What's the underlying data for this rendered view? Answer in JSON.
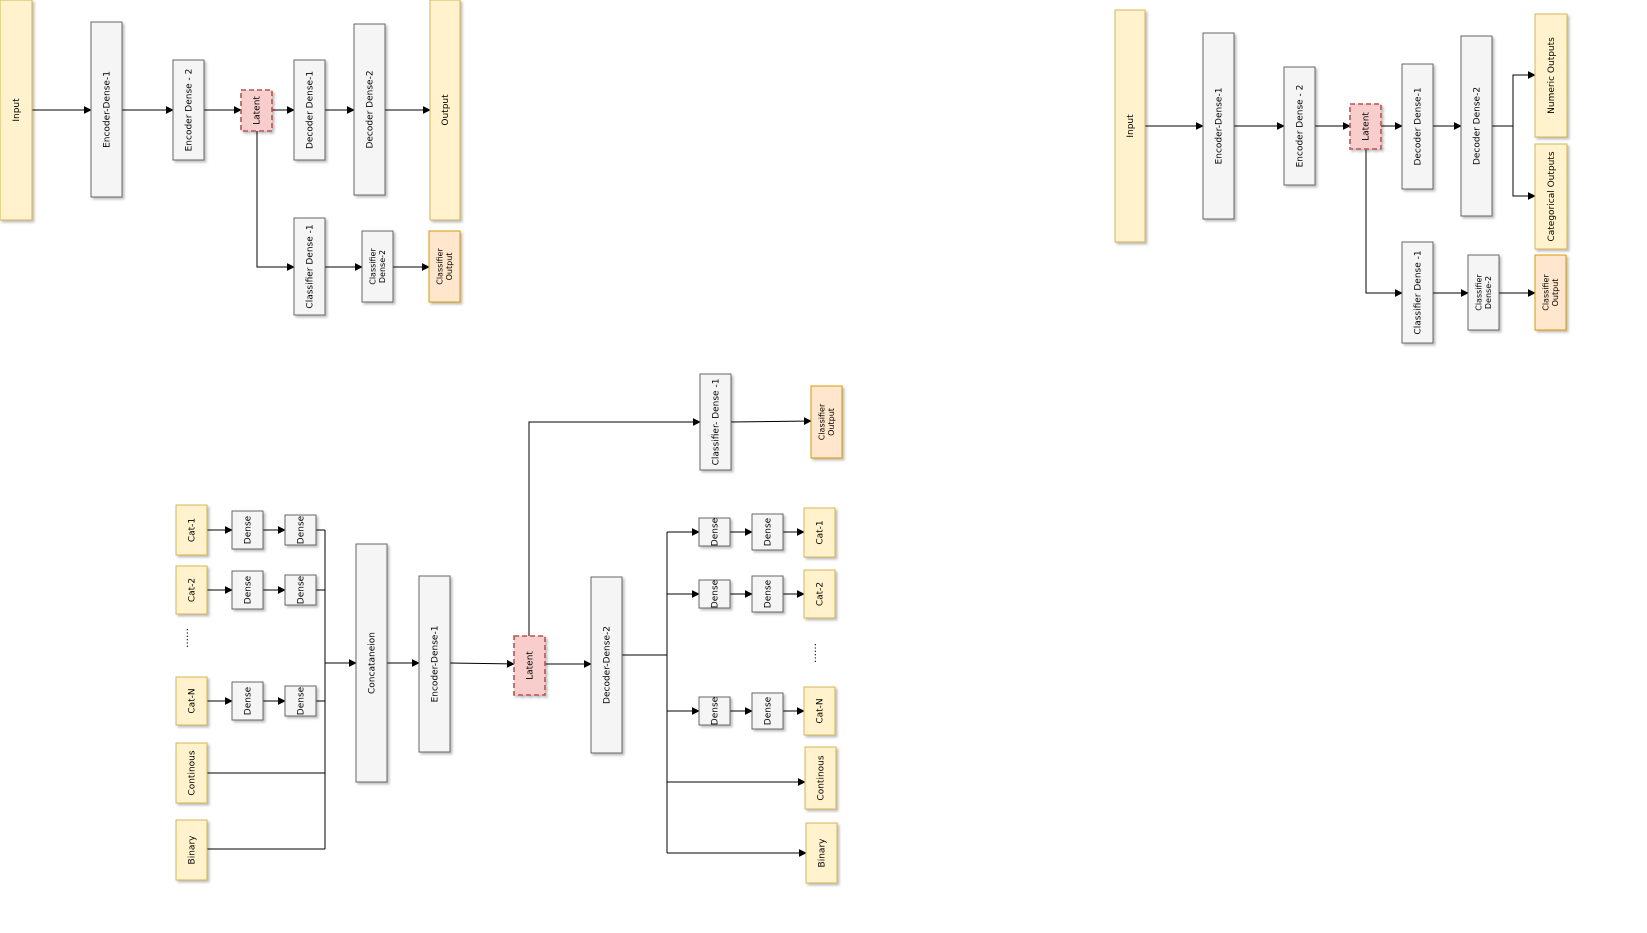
{
  "diagram_top_left": {
    "input": "Input",
    "encoder_dense_1": "Encoder-Dense-1",
    "encoder_dense_2": "Encoder Dense - 2",
    "latent": "Latent",
    "decoder_dense_1": "Decoder Dense-1",
    "decoder_dense_2": "Decoder Dense-2",
    "output": "Output",
    "classifier_dense_1": "Classifier Dense -1",
    "classifier_dense_2": [
      "Classifier",
      "Dense-2"
    ],
    "classifier_output": [
      "Classifier",
      "Output"
    ]
  },
  "diagram_top_right": {
    "input": "Input",
    "encoder_dense_1": "Encoder-Dense-1",
    "encoder_dense_2": "Encoder Dense - 2",
    "latent": "Latent",
    "decoder_dense_1": "Decoder Dense-1",
    "decoder_dense_2": "Decoder Dense-2",
    "numeric_outputs": "Numeric  Outputs",
    "categorical_outputs": "Categorical Outputs",
    "classifier_dense_1": "Classifier Dense -1",
    "classifier_dense_2": [
      "Classifier",
      "Dense-2"
    ],
    "classifier_output": [
      "Classifier",
      "Output"
    ]
  },
  "diagram_bottom": {
    "inputs": [
      "Cat-1",
      "Cat-2",
      "Cat-N",
      "Continous",
      "Binary"
    ],
    "ellipsis": "……",
    "dense": "Dense",
    "concatenation": "Concataneion",
    "encoder_dense_1": "Encoder-Dense-1",
    "latent": "Latent",
    "decoder_dense_2": "Decoder-Dense-2",
    "classifier_dense_1": "Classifier- Dense -1",
    "classifier_output": [
      "Classifier",
      "Output"
    ],
    "outputs": [
      "Cat-1",
      "Cat-2",
      "Cat-N",
      "Continous",
      "Binary"
    ]
  },
  "colors": {
    "input_fill": "#fff2cc",
    "input_stroke": "#d6b656",
    "layer_fill": "#f5f5f5",
    "layer_stroke": "#666666",
    "latent_fill": "#f8cecc",
    "latent_stroke": "#b85450",
    "output_fill": "#ffe6cc",
    "output_stroke": "#d79b00",
    "edge": "#000000"
  }
}
